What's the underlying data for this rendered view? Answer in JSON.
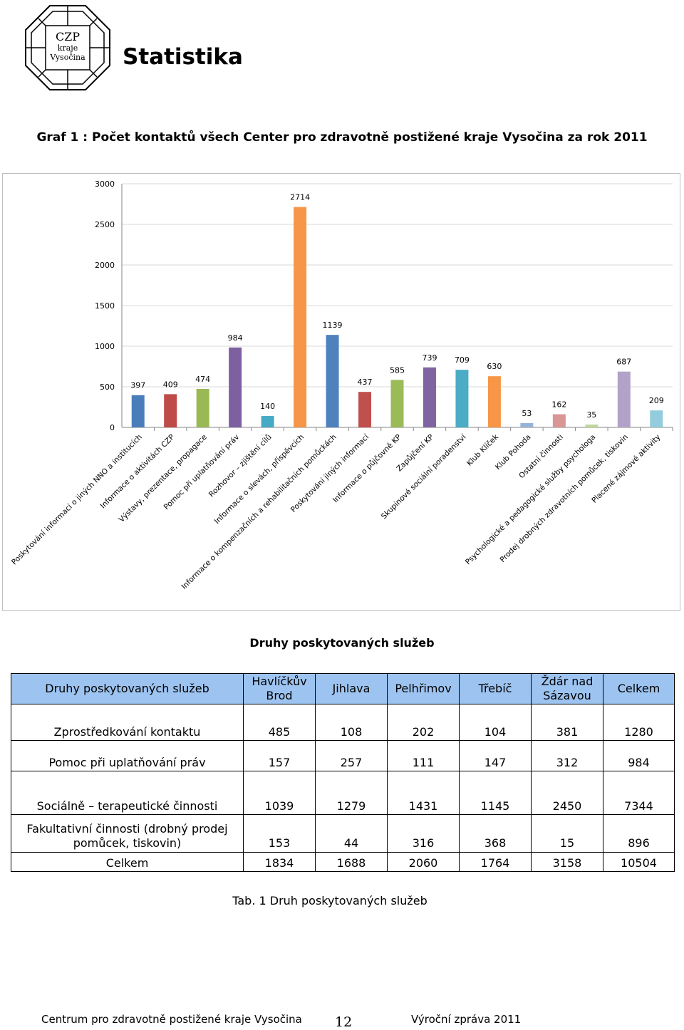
{
  "logo": {
    "line1": "CZP",
    "line2": "kraje",
    "line3": "Vysočina"
  },
  "page_title": "Statistika",
  "graph_caption": "Graf 1 : Počet kontaktů všech Center pro zdravotně postižené kraje Vysočina za rok 2011",
  "chart_data": {
    "type": "bar",
    "ylim": [
      0,
      3000
    ],
    "yticks": [
      0,
      500,
      1000,
      1500,
      2000,
      2500,
      3000
    ],
    "grid": true,
    "legend": "none",
    "categories": [
      "Poskytování informací o jiných NNO a institucích",
      "Informace o aktivitách CZP",
      "Výstavy, prezentace, propagace",
      "Pomoc při uplatňování práv",
      "Rozhovor – zjištění cílů",
      "Informace o slevách, příspěvcích",
      "Informace o kompenzačních a rehabilitačních pomůckách",
      "Poskytování jiných informací",
      "Informace o půjčovně KP",
      "Zapůjčení KP",
      "Skupinové sociální poradenství",
      "Klub Klíček",
      "Klub Pohoda",
      "Ostatní činnosti",
      "Psychologické a pedagogické služby psychologa",
      "Prodej drobných zdravotních pomůcek, tiskovin",
      "Placené zájmové aktivity"
    ],
    "values": [
      397,
      409,
      474,
      984,
      140,
      2714,
      1139,
      437,
      585,
      739,
      709,
      630,
      53,
      162,
      35,
      687,
      209
    ],
    "colors": [
      "#4a7ebb",
      "#be4b48",
      "#98b954",
      "#7d60a0",
      "#46aac5",
      "#f79646",
      "#4f81bd",
      "#c0504d",
      "#9bbb59",
      "#8064a2",
      "#4bacc6",
      "#f79646",
      "#95b3d7",
      "#d99694",
      "#c3d69b",
      "#b3a2c7",
      "#93cddd"
    ]
  },
  "table": {
    "caption": "Druhy poskytovaných služeb",
    "headers": [
      "Druhy poskytovaných služeb",
      "Havlíčkův Brod",
      "Jihlava",
      "Pelhřimov",
      "Třebíč",
      "Ždár nad Sázavou",
      "Celkem"
    ],
    "rows": [
      [
        "Zprostředkování kontaktu",
        "485",
        "108",
        "202",
        "104",
        "381",
        "1280"
      ],
      [
        "Pomoc při uplatňování práv",
        "157",
        "257",
        "111",
        "147",
        "312",
        "984"
      ],
      [
        "Sociálně – terapeutické činnosti",
        "1039",
        "1279",
        "1431",
        "1145",
        "2450",
        "7344"
      ],
      [
        "Fakultativní činnosti (drobný prodej pomůcek, tiskovin)",
        "153",
        "44",
        "316",
        "368",
        "15",
        "896"
      ],
      [
        "Celkem",
        "1834",
        "1688",
        "2060",
        "1764",
        "3158",
        "10504"
      ]
    ],
    "note": "Tab. 1 Druh poskytovaných služeb"
  },
  "footer": {
    "left": "Centrum pro zdravotně postižené kraje Vysočina",
    "page_number": "12",
    "right": "Výroční zpráva 2011"
  }
}
